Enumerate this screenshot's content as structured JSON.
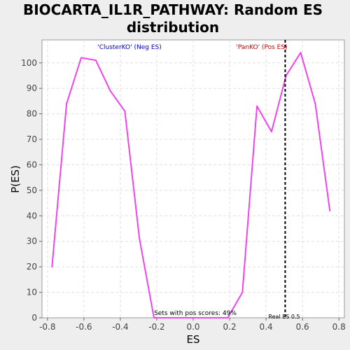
{
  "chart_data": {
    "type": "line",
    "title_lines": [
      "BIOCARTA_IL1R_PATHWAY: Random ES",
      "distribution"
    ],
    "xlabel": "ES",
    "ylabel": "P(ES)",
    "xlim": [
      -0.83,
      0.83
    ],
    "ylim": [
      0,
      109
    ],
    "xticks": [
      -0.8,
      -0.6,
      -0.4,
      -0.2,
      0.0,
      0.2,
      0.4,
      0.6,
      0.8
    ],
    "xtick_labels": [
      "-0.8",
      "-0.6",
      "-0.4",
      "-0.2",
      "0.0",
      "0.2",
      "0.4",
      "0.6",
      "0.8"
    ],
    "yticks": [
      0,
      10,
      20,
      30,
      40,
      50,
      60,
      70,
      80,
      90,
      100
    ],
    "ytick_labels": [
      "0",
      "10",
      "20",
      "30",
      "40",
      "50",
      "60",
      "70",
      "80",
      "90",
      "100"
    ],
    "grid": true,
    "series": [
      {
        "color": "#ee44ee",
        "x": [
          -0.775,
          -0.695,
          -0.615,
          -0.535,
          -0.455,
          -0.375,
          -0.295,
          -0.215,
          -0.135,
          -0.055,
          0.025,
          0.105,
          0.19,
          0.27,
          0.35,
          0.43,
          0.51,
          0.59,
          0.67,
          0.75
        ],
        "y": [
          20,
          84,
          102,
          101,
          89,
          81,
          31,
          0,
          0,
          0,
          0,
          0,
          0,
          10,
          83,
          73,
          95,
          104,
          84,
          42
        ]
      }
    ],
    "real_es": {
      "x": 0.505,
      "label": "Real ES 0.5",
      "color": "#000000"
    },
    "annotations": {
      "neg": {
        "text": "'ClusterKO' (Neg ES)",
        "color": "#0000cc"
      },
      "pos": {
        "text": "'PanKO' (Pos ES)",
        "color": "#cc0000"
      },
      "pos_scores": {
        "text": "Sets with pos scores: 49%"
      }
    }
  }
}
